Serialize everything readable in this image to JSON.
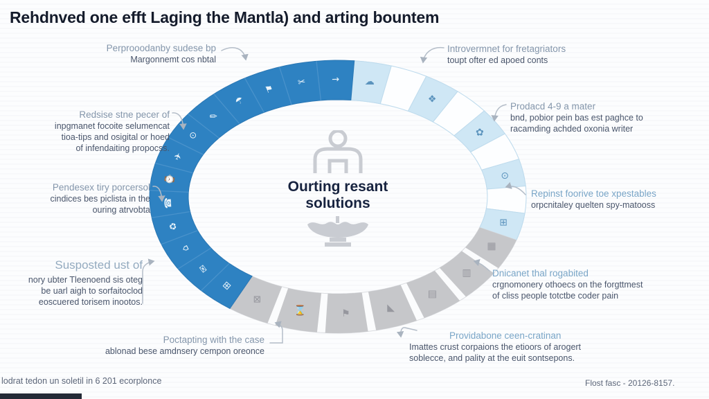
{
  "title": "Rehdnved one efft Laging the Mantla) and arting bountem",
  "center": {
    "line1": "Ourting resant",
    "line2": "solutions"
  },
  "callouts": {
    "left": [
      {
        "lines": [
          "Perprooodanby sudese bp",
          "Margonnemt cos nbtal"
        ]
      },
      {
        "lines": [
          "Redsise stne pecer of",
          "inpgmanet focoite selumencat",
          "tioa-tips and osigital or hoed",
          "of infendaiting propocss."
        ]
      },
      {
        "lines": [
          "Pendesex tiry porcersol",
          "cindices bes piclista in the",
          "ouring atrvobta"
        ]
      },
      {
        "lines": [
          "Susposted ust of",
          "nory ubter Tleenoend sis oteg",
          "be uarl aigh to sorfaitoclod",
          "eoscuered torisem inootos."
        ]
      },
      {
        "lines": [
          "Poctapting with the case",
          "ablonad bese amdnsery cempon oreonce"
        ]
      }
    ],
    "right": [
      {
        "lines": [
          "Introvermnet for fretagriators",
          "toupt ofter ed apoed conts"
        ]
      },
      {
        "lines": [
          "Prodacd 4-9 a mater",
          "bnd, pobior pein bas est paghce to",
          "racamding achded oxonia writer"
        ]
      },
      {
        "lines": [
          "Repinst foorive toe xpestables",
          "orpcnitaley quelten spy-matooss"
        ]
      },
      {
        "lines": [
          "Dnicanet thal rogabited",
          "crgnomonery othoecs on the forgttmest",
          "of cliss people totctbe coder pain"
        ]
      },
      {
        "lines": [
          "Providabone ceen-cratinan",
          "Imattes crust corpaions the etioors of arogert",
          "soblecce, and pality at the euit sontsepons."
        ]
      }
    ]
  },
  "footer": {
    "left": "lodrat tedon un soletil in 6 201 ecorplonce",
    "right": "Flost fasc - 20126-8157."
  },
  "colors": {
    "accent_blue": "#2e82c2",
    "blue_edge": "#2a77b4",
    "blue_separator": "#4e95cd",
    "light_blue_cell": "#cfe7f5",
    "light_cell_stroke": "#bedbed",
    "white_cell": "#fdfeff",
    "gray_cell": "#c6c7ca",
    "gray_icon": "#96979e",
    "light_icon": "#5b93bd",
    "connector": "#b4bdc8",
    "center_icon": "#c9ccd2"
  },
  "ring": {
    "blue_icons": [
      "⊞",
      "✉",
      "⌂",
      "♻",
      "☎",
      "⌚",
      "✈",
      "⊙",
      "✎",
      "☂",
      "⚑",
      "✂",
      "→"
    ],
    "light_icons": [
      "☁",
      "",
      "❖",
      "",
      "✿",
      "",
      "⊙",
      "",
      "⊞"
    ],
    "gray_icons": [
      "▦",
      "▥",
      "▤",
      "◣",
      "⚑",
      "⌛",
      "⊠"
    ]
  }
}
